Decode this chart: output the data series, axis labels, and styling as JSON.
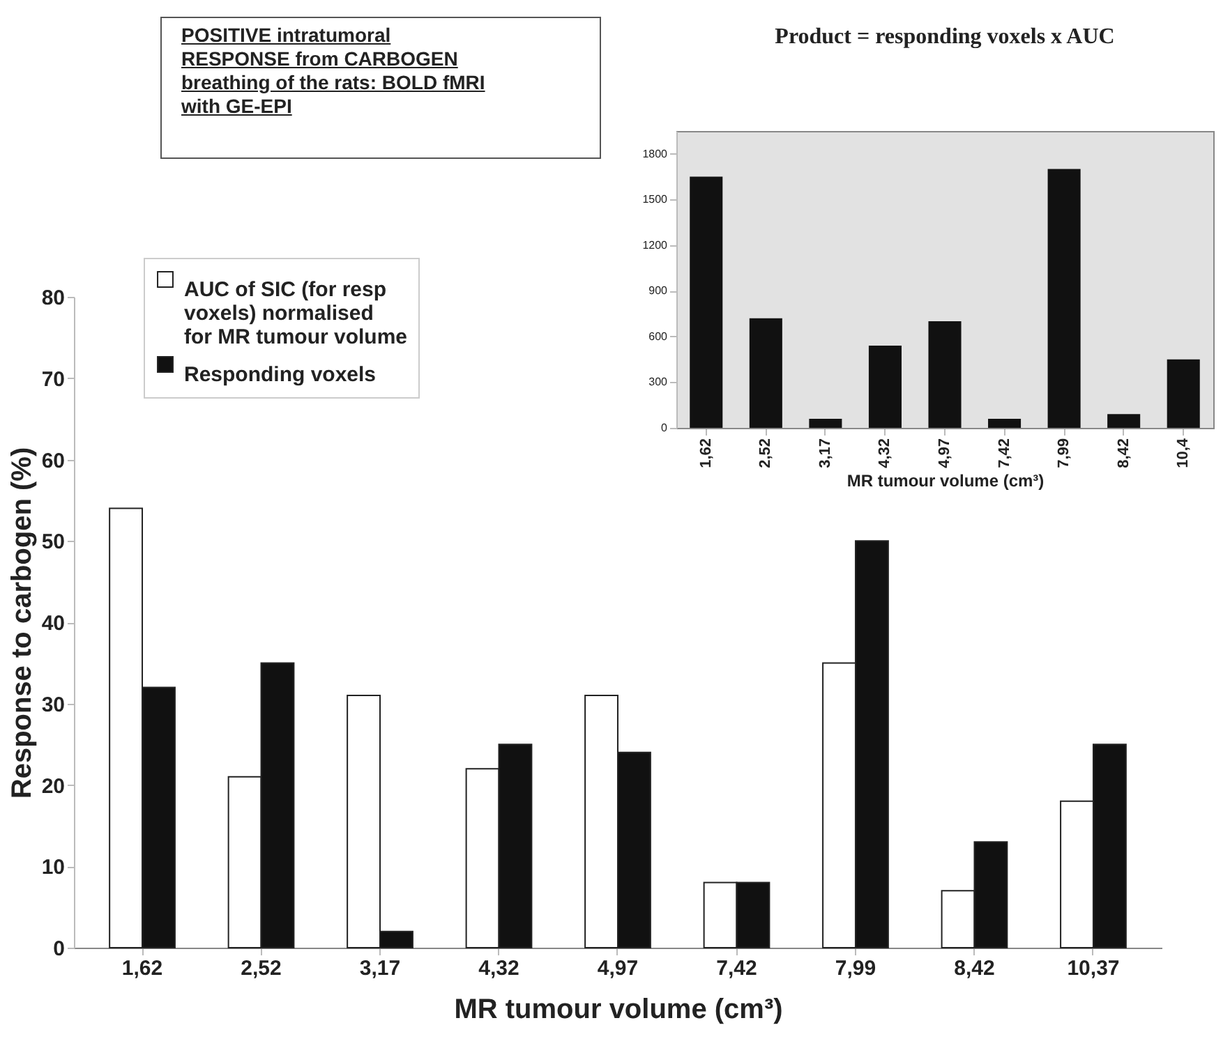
{
  "chart_data": [
    {
      "type": "bar",
      "ylabel": "Response to carbogen (%)",
      "xlabel": "MR tumour volume (cm³)",
      "categories": [
        "1,62",
        "2,52",
        "3,17",
        "4,32",
        "4,97",
        "7,42",
        "7,99",
        "8,42",
        "10,37"
      ],
      "series": [
        {
          "name": "AUC of SIC (for resp voxels) normalised for MR tumour volume",
          "color": "#ffffff",
          "values": [
            54,
            21,
            31,
            22,
            31,
            8,
            35,
            7,
            18
          ]
        },
        {
          "name": "Responding voxels",
          "color": "#111111",
          "values": [
            32,
            35,
            2,
            25,
            24,
            8,
            50,
            13,
            25
          ]
        }
      ],
      "ylim": [
        0,
        80
      ],
      "yticks": [
        0,
        10,
        20,
        30,
        40,
        50,
        60,
        70,
        80
      ],
      "grid": false,
      "legend": "top left",
      "annotations": [
        "POSITIVE intratumoral RESPONSE from CARBOGEN breathing of the rats: BOLD fMRI with GE-EPI"
      ]
    },
    {
      "type": "bar",
      "title": "Product = responding voxels x AUC",
      "xlabel": "MR tumour volume (cm³)",
      "categories": [
        "1,62",
        "2,52",
        "3,17",
        "4,32",
        "4,97",
        "7,42",
        "7,99",
        "8,42",
        "10,4"
      ],
      "values": [
        1650,
        720,
        60,
        540,
        700,
        60,
        1700,
        90,
        450
      ],
      "color": "#111111",
      "ylim": [
        0,
        1950
      ],
      "yticks": [
        0,
        300,
        600,
        900,
        {
          "value": 1200,
          "label": "1200"
        },
        {
          "value": 1500,
          "label": "1500"
        },
        {
          "value": 1800,
          "label": "1800"
        }
      ],
      "grid": false
    }
  ]
}
